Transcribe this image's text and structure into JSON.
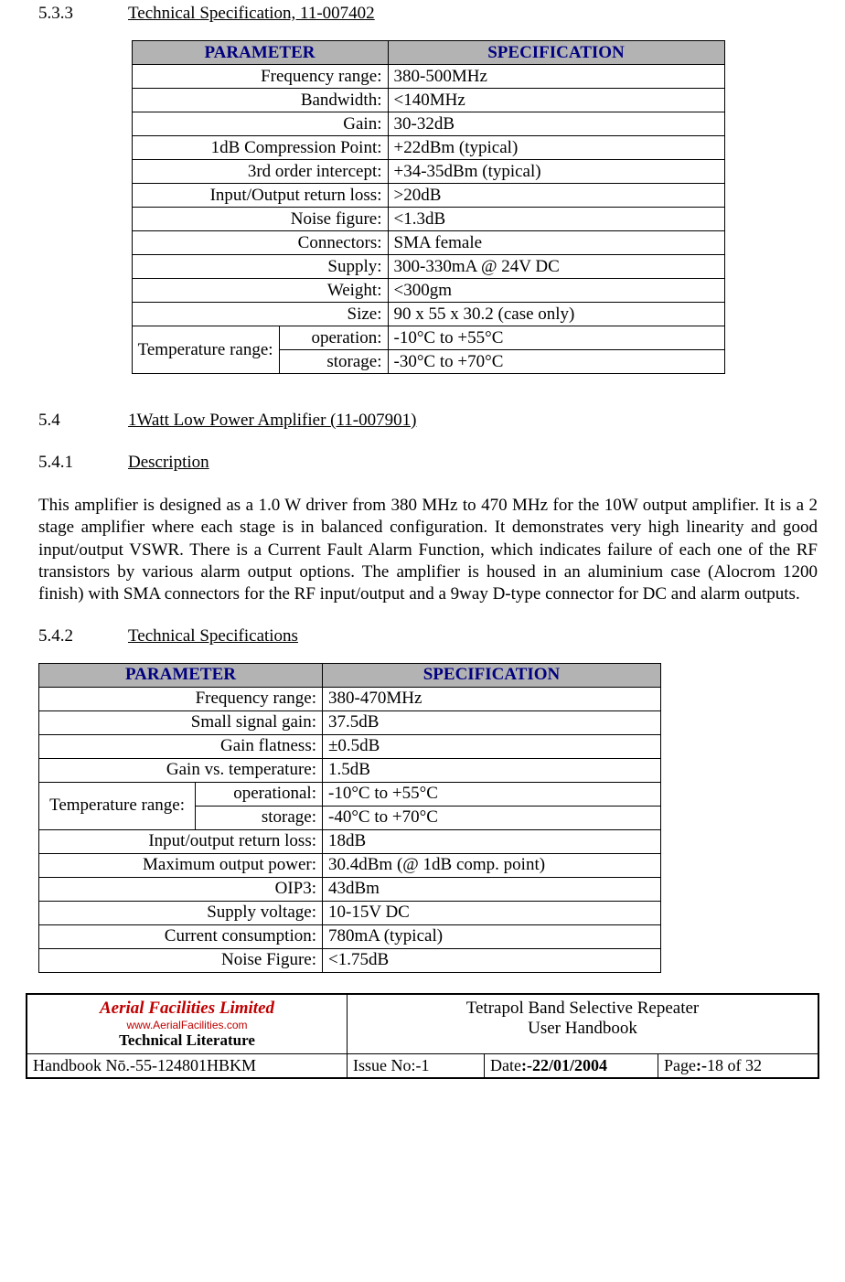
{
  "colors": {
    "header_bg": "#b3b3b3",
    "header_text": "#000080",
    "border": "#000000",
    "logo_red": "#c00000",
    "body_text": "#000000",
    "page_bg": "#ffffff"
  },
  "h533": {
    "num": "5.3.3",
    "title": "Technical Specification, 11-007402"
  },
  "table1": {
    "headers": {
      "param": "PARAMETER",
      "spec": "SPECIFICATION"
    },
    "rows": [
      {
        "param": "Frequency range:",
        "spec": "380-500MHz"
      },
      {
        "param": "Bandwidth:",
        "spec": "<140MHz"
      },
      {
        "param": "Gain:",
        "spec": "30-32dB"
      },
      {
        "param": "1dB Compression Point:",
        "spec": "+22dBm (typical)"
      },
      {
        "param": "3rd order intercept:",
        "spec": "+34-35dBm (typical)"
      },
      {
        "param": "Input/Output return loss:",
        "spec": ">20dB"
      },
      {
        "param": "Noise figure:",
        "spec": "<1.3dB"
      },
      {
        "param": "Connectors:",
        "spec": "SMA female"
      },
      {
        "param": "Supply:",
        "spec": "300-330mA @ 24V DC"
      },
      {
        "param": "Weight:",
        "spec": "<300gm"
      },
      {
        "param": "Size:",
        "spec": "90 x 55 x 30.2 (case only)"
      }
    ],
    "temp_label": "Temperature range:",
    "temp_rows": [
      {
        "sub": "operation:",
        "spec": "-10°C to +55°C"
      },
      {
        "sub": "storage:",
        "spec": "-30°C to +70°C"
      }
    ]
  },
  "h54": {
    "num": "5.4",
    "title": "1Watt Low Power Amplifier (11-007901)"
  },
  "h541": {
    "num": "5.4.1",
    "title": "Description"
  },
  "body541": "This amplifier is designed as a 1.0 W driver from 380 MHz to 470 MHz for the 10W output amplifier. It is a 2 stage amplifier where each stage is in balanced configuration. It demonstrates very high linearity and good input/output VSWR. There is a Current Fault Alarm Function, which indicates failure of each one of the RF transistors by various alarm output options. The amplifier is housed in an aluminium case (Alocrom 1200 finish) with SMA connectors for the RF input/output and a 9way D-type connector for DC and alarm outputs.",
  "h542": {
    "num": "5.4.2",
    "title": "Technical Specifications"
  },
  "table2": {
    "headers": {
      "param": "PARAMETER",
      "spec": "SPECIFICATION"
    },
    "rows_a": [
      {
        "param": "Frequency range:",
        "spec": "380-470MHz"
      },
      {
        "param": "Small signal gain:",
        "spec": "37.5dB"
      },
      {
        "param": "Gain flatness:",
        "spec": "±0.5dB"
      },
      {
        "param": "Gain vs. temperature:",
        "spec": "1.5dB"
      }
    ],
    "temp_label": "Temperature range:",
    "temp_rows": [
      {
        "sub": "operational:",
        "spec": "-10°C to +55°C"
      },
      {
        "sub": "storage:",
        "spec": "-40°C to +70°C"
      }
    ],
    "rows_b": [
      {
        "param": "Input/output return loss:",
        "spec": "18dB"
      },
      {
        "param": "Maximum output power:",
        "spec": "30.4dBm (@ 1dB comp. point)"
      },
      {
        "param": "OIP3:",
        "spec": "43dBm"
      },
      {
        "param": "Supply voltage:",
        "spec": "10-15V DC"
      },
      {
        "param": "Current consumption:",
        "spec": "780mA (typical)"
      },
      {
        "param": "Noise Figure:",
        "spec": "<1.75dB"
      }
    ]
  },
  "footer": {
    "logo": {
      "name": "Aerial  Facilities  Limited",
      "url": "www.AerialFacilities.com",
      "sub": "Technical Literature"
    },
    "title1": "Tetrapol Band Selective Repeater",
    "title2": "User Handbook",
    "handbook_label": "Handbook Nō.-",
    "handbook_val": "55-124801HBKM",
    "issue_label": "Issue No:-",
    "issue_val": "1",
    "date_label": "Date",
    "date_val": ":-22/01/2004",
    "page_label": "Page",
    "page_sep": ":-",
    "page_cur": "18",
    "page_of": " of ",
    "page_total": "32"
  }
}
